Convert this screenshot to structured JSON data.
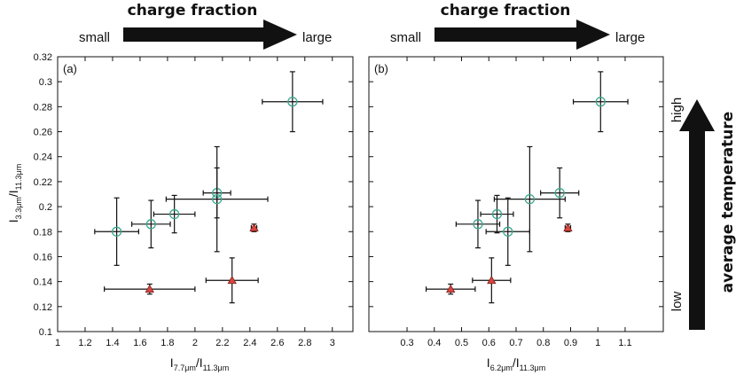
{
  "chart_data": [
    {
      "type": "scatter",
      "panel_label": "(a)",
      "xlabel": {
        "main": "I",
        "sub1": "7.7μm",
        "slash": "/I",
        "sub2": "11.3μm"
      },
      "ylabel": {
        "main": "I",
        "sub1": "3.3μm",
        "slash": "/I",
        "sub2": "11.3μm"
      },
      "xlim": [
        1,
        3.15
      ],
      "ylim": [
        0.1,
        0.32
      ],
      "xticks": [
        "1",
        "1.2",
        "1.4",
        "1.6",
        "1.8",
        "2",
        "2.2",
        "2.4",
        "2.6",
        "2.8",
        "3"
      ],
      "yticks": [
        "0.1",
        "0.12",
        "0.14",
        "0.16",
        "0.18",
        "0.2",
        "0.22",
        "0.24",
        "0.26",
        "0.28",
        "0.3",
        "0.32"
      ],
      "series": [
        {
          "marker": "circle-cross",
          "color": "#3aa88f",
          "points": [
            {
              "x": 1.43,
              "y": 0.18,
              "xerr": 0.16,
              "yerr": 0.027
            },
            {
              "x": 1.68,
              "y": 0.186,
              "xerr": 0.14,
              "yerr": 0.019
            },
            {
              "x": 1.85,
              "y": 0.194,
              "xerr": 0.15,
              "yerr": 0.015
            },
            {
              "x": 2.16,
              "y": 0.211,
              "xerr": 0.1,
              "yerr": 0.02
            },
            {
              "x": 2.16,
              "y": 0.206,
              "xerr": 0.37,
              "yerr": 0.042
            },
            {
              "x": 2.71,
              "y": 0.284,
              "xerr": 0.22,
              "yerr": 0.024
            }
          ]
        },
        {
          "marker": "triangle",
          "color": "#d9463f",
          "points": [
            {
              "x": 1.67,
              "y": 0.134,
              "xerr": 0.33,
              "yerr": 0.004
            },
            {
              "x": 2.27,
              "y": 0.141,
              "xerr": 0.19,
              "yerr": 0.018
            },
            {
              "x": 2.43,
              "y": 0.183,
              "xerr": 0.02,
              "yerr": 0.003
            }
          ]
        }
      ]
    },
    {
      "type": "scatter",
      "panel_label": "(b)",
      "xlabel": {
        "main": "I",
        "sub1": "6.2μm",
        "slash": "/I",
        "sub2": "11.3μm"
      },
      "ylabel": {
        "main": "",
        "sub1": "",
        "slash": "",
        "sub2": ""
      },
      "xlim": [
        0.16,
        1.24
      ],
      "ylim": [
        0.1,
        0.32
      ],
      "xticks": [
        "0.3",
        "0.4",
        "0.5",
        "0.6",
        "0.7",
        "0.8",
        "0.9",
        "1",
        "1.1"
      ],
      "yticks": [],
      "series": [
        {
          "marker": "circle-cross",
          "color": "#3aa88f",
          "points": [
            {
              "x": 0.56,
              "y": 0.186,
              "xerr": 0.08,
              "yerr": 0.019
            },
            {
              "x": 0.63,
              "y": 0.194,
              "xerr": 0.06,
              "yerr": 0.015
            },
            {
              "x": 0.67,
              "y": 0.18,
              "xerr": 0.08,
              "yerr": 0.027
            },
            {
              "x": 0.75,
              "y": 0.206,
              "xerr": 0.13,
              "yerr": 0.042
            },
            {
              "x": 0.86,
              "y": 0.211,
              "xerr": 0.07,
              "yerr": 0.02
            },
            {
              "x": 1.01,
              "y": 0.284,
              "xerr": 0.1,
              "yerr": 0.024
            }
          ]
        },
        {
          "marker": "triangle",
          "color": "#d9463f",
          "points": [
            {
              "x": 0.46,
              "y": 0.134,
              "xerr": 0.09,
              "yerr": 0.004
            },
            {
              "x": 0.61,
              "y": 0.141,
              "xerr": 0.07,
              "yerr": 0.018
            },
            {
              "x": 0.89,
              "y": 0.183,
              "xerr": 0.01,
              "yerr": 0.003
            }
          ]
        }
      ]
    }
  ],
  "annotations": {
    "top_left": {
      "title": "charge fraction",
      "left": "small",
      "right": "large"
    },
    "top_right": {
      "title": "charge fraction",
      "left": "small",
      "right": "large"
    },
    "side": {
      "title": "average temperature",
      "top": "high",
      "bottom": "low"
    }
  }
}
